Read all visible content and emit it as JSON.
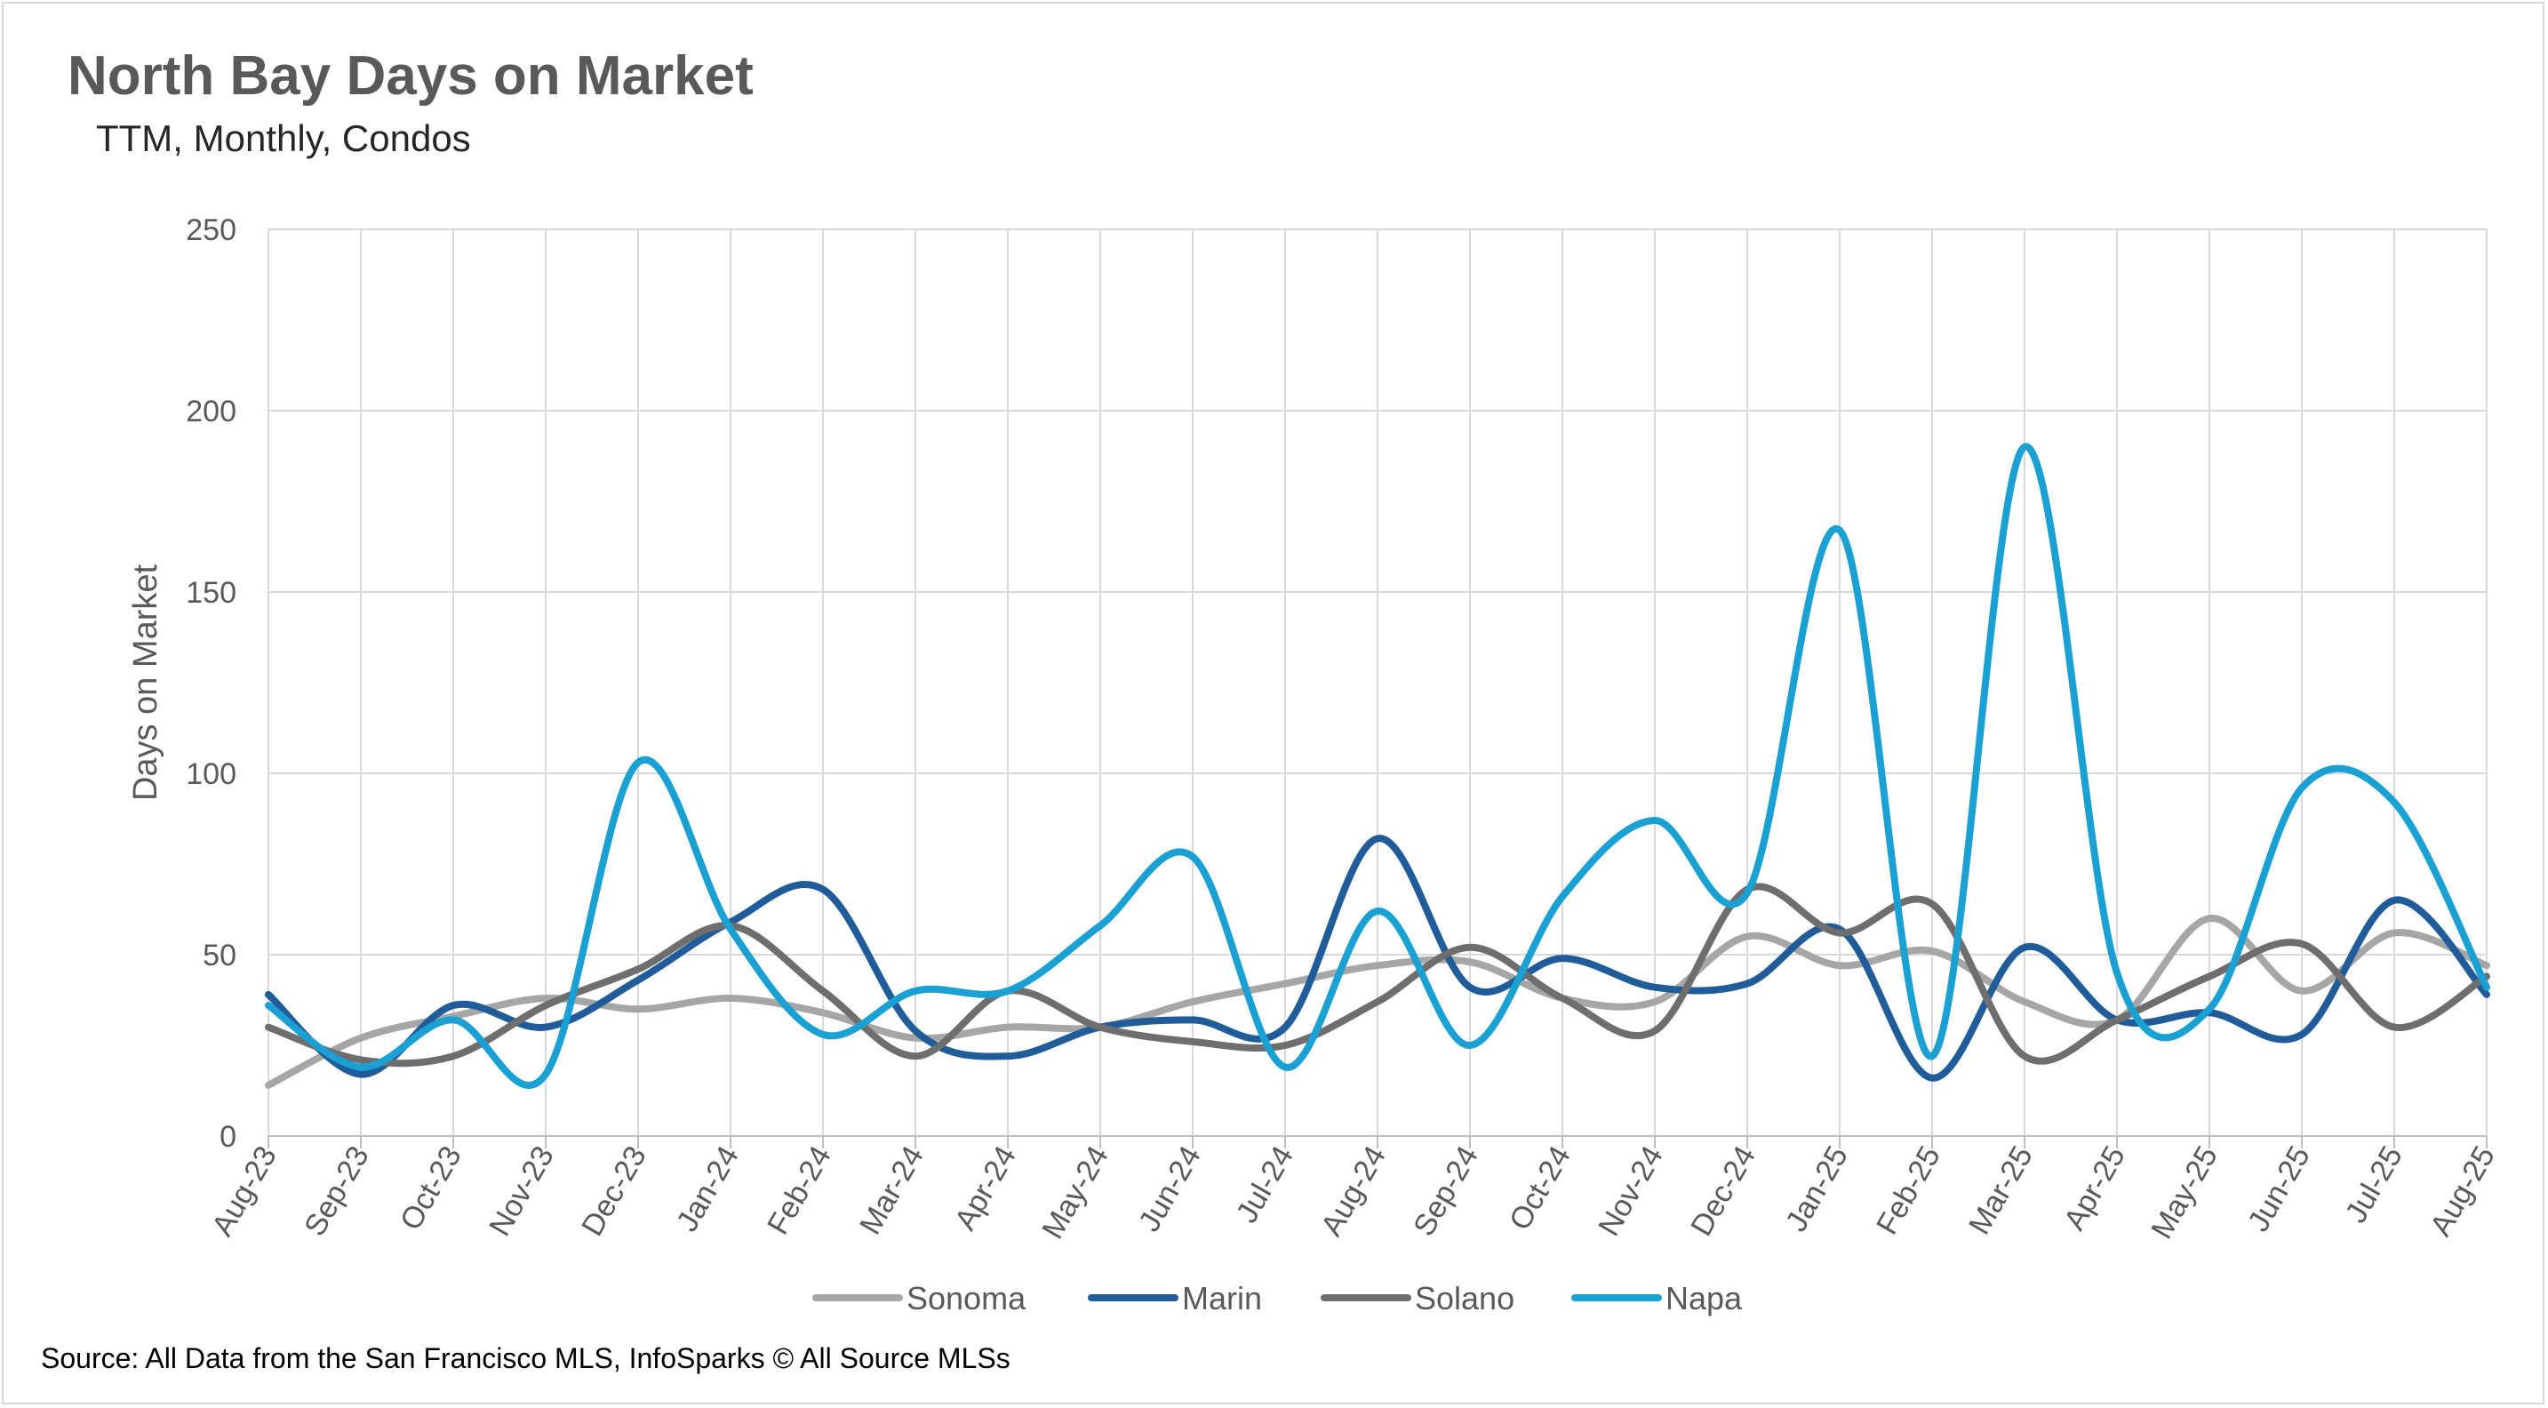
{
  "chart_data": {
    "type": "line",
    "title": "North Bay Days on Market",
    "subtitle": "TTM, Monthly, Condos",
    "ylabel": "Days on Market",
    "xlabel": "",
    "ylim": [
      0,
      250
    ],
    "yticks": [
      0,
      50,
      100,
      150,
      200,
      250
    ],
    "grid": true,
    "legend_position": "bottom",
    "categories": [
      "Aug-23",
      "Sep-23",
      "Oct-23",
      "Nov-23",
      "Dec-23",
      "Jan-24",
      "Feb-24",
      "Mar-24",
      "Apr-24",
      "May-24",
      "Jun-24",
      "Jul-24",
      "Aug-24",
      "Sep-24",
      "Oct-24",
      "Nov-24",
      "Dec-24",
      "Jan-25",
      "Feb-25",
      "Mar-25",
      "Apr-25",
      "May-25",
      "Jun-25",
      "Jul-25",
      "Aug-25"
    ],
    "series": [
      {
        "name": "Sonoma",
        "color": "#a6a6a6",
        "values": [
          14,
          27,
          33,
          38,
          35,
          38,
          34,
          27,
          30,
          30,
          37,
          42,
          47,
          48,
          38,
          37,
          55,
          47,
          51,
          37,
          32,
          60,
          40,
          56,
          47
        ]
      },
      {
        "name": "Marin",
        "color": "#1f5c99",
        "values": [
          39,
          17,
          36,
          30,
          43,
          59,
          68,
          29,
          22,
          30,
          32,
          30,
          82,
          41,
          49,
          41,
          42,
          57,
          16,
          52,
          32,
          34,
          28,
          65,
          39
        ]
      },
      {
        "name": "Solano",
        "color": "#6e6e6e",
        "values": [
          30,
          21,
          22,
          36,
          46,
          58,
          40,
          22,
          40,
          30,
          26,
          25,
          37,
          52,
          38,
          29,
          68,
          56,
          64,
          22,
          32,
          44,
          53,
          30,
          44
        ]
      },
      {
        "name": "Napa",
        "color": "#1aa0d2",
        "values": [
          36,
          19,
          32,
          17,
          103,
          57,
          28,
          40,
          40,
          58,
          77,
          19,
          62,
          25,
          66,
          87,
          67,
          167,
          22,
          190,
          45,
          35,
          96,
          92,
          41
        ]
      }
    ]
  },
  "source": "Source: All Data from the San Francisco MLS, InfoSparks © All Source MLSs"
}
